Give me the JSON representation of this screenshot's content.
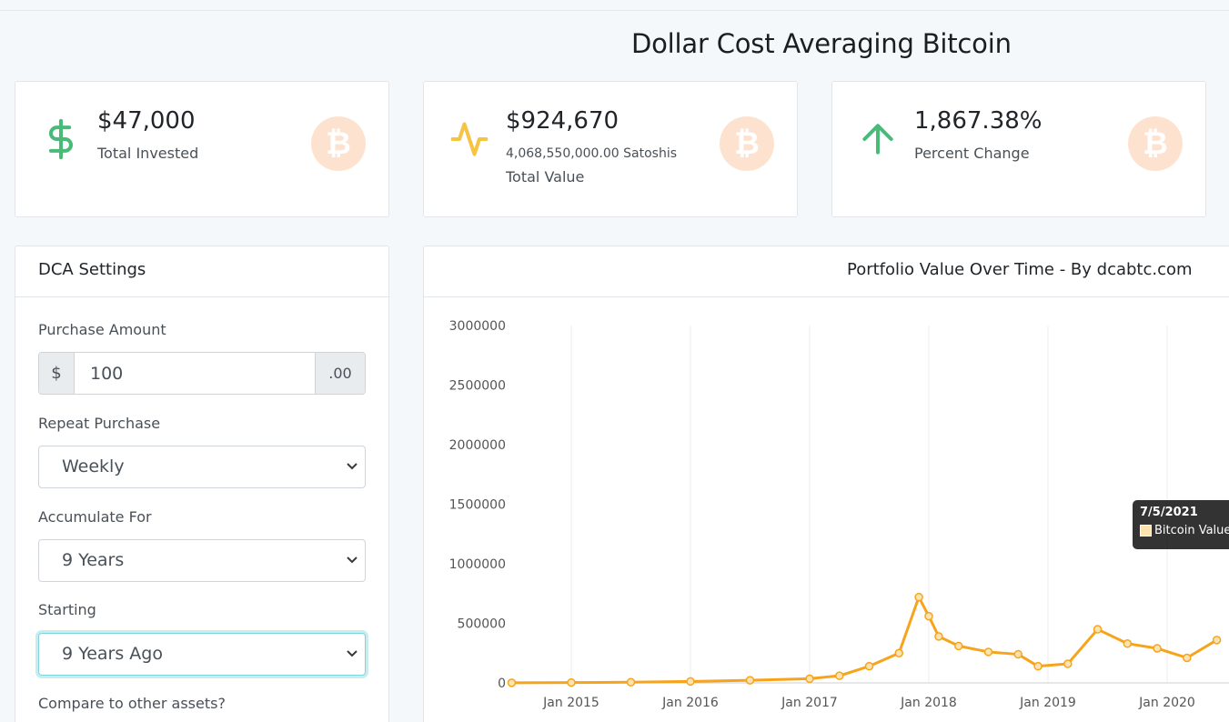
{
  "page": {
    "title": "Dollar Cost Averaging Bitcoin"
  },
  "stats": {
    "invested": {
      "value": "$47,000",
      "label": "Total Invested",
      "icon": "dollar-sign-icon",
      "icon_color": "#48bb78"
    },
    "total_value": {
      "value": "$924,670",
      "satoshis": "4,068,550,000.00 Satoshis",
      "label": "Total Value",
      "icon": "activity-icon",
      "icon_color": "#f6c343"
    },
    "percent": {
      "value": "1,867.38%",
      "label": "Percent Change",
      "icon": "arrow-up-icon",
      "icon_color": "#48bb78"
    },
    "coin_glyph": "₿"
  },
  "settings": {
    "header": "DCA Settings",
    "purchase_amount": {
      "label": "Purchase Amount",
      "prefix": "$",
      "value": "100",
      "suffix": ".00"
    },
    "repeat": {
      "label": "Repeat Purchase",
      "value": "Weekly"
    },
    "accumulate": {
      "label": "Accumulate For",
      "value": "9 Years"
    },
    "starting": {
      "label": "Starting",
      "value": "9 Years Ago"
    },
    "compare_label": "Compare to other assets?"
  },
  "chart": {
    "header": "Portfolio Value Over Time - By dcabtc.com",
    "tooltip": {
      "date": "7/5/2021",
      "series": "Bitcoin Value"
    },
    "line_color": "#f7a41d"
  },
  "chart_data": {
    "type": "line",
    "title": "Portfolio Value Over Time - By dcabtc.com",
    "series": [
      {
        "name": "Bitcoin Value",
        "x": [
          "2014-07",
          "2015-01",
          "2015-07",
          "2016-01",
          "2016-07",
          "2017-01",
          "2017-04",
          "2017-07",
          "2017-10",
          "2017-12",
          "2018-01",
          "2018-02",
          "2018-04",
          "2018-07",
          "2018-10",
          "2018-12",
          "2019-03",
          "2019-06",
          "2019-09",
          "2019-12",
          "2020-03",
          "2020-06"
        ],
        "values": [
          1000,
          3000,
          6000,
          12000,
          22000,
          35000,
          60000,
          140000,
          250000,
          720000,
          560000,
          390000,
          310000,
          260000,
          240000,
          140000,
          160000,
          450000,
          330000,
          290000,
          210000,
          360000
        ]
      }
    ],
    "x_tick_labels": [
      "Jan 2015",
      "Jan 2016",
      "Jan 2017",
      "Jan 2018",
      "Jan 2019",
      "Jan 2020"
    ],
    "y_tick_labels": [
      "0",
      "500000",
      "1000000",
      "1500000",
      "2000000",
      "2500000",
      "3000000"
    ],
    "ylim": [
      0,
      3000000
    ],
    "grid": "vertical"
  }
}
